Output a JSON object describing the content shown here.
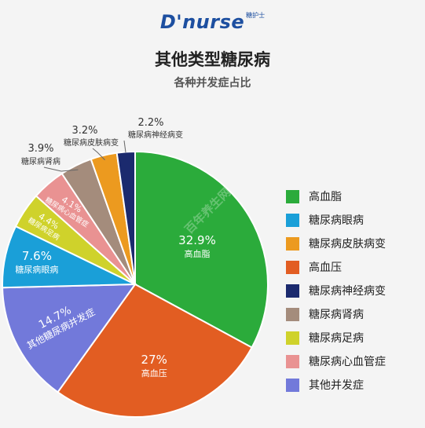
{
  "logo": {
    "text": "D'nurse",
    "subtext": "糖护士"
  },
  "chart_data": {
    "type": "pie",
    "title": "其他类型糖尿病",
    "subtitle": "各种并发症占比",
    "unit": "%",
    "legend_position": "right",
    "watermark": "百年养生网",
    "slices": [
      {
        "label": "高血脂",
        "value": 32.9,
        "value_label": "32.9%",
        "color": "#2bab3b"
      },
      {
        "label": "高血压",
        "value": 27.0,
        "value_label": "27%",
        "color": "#e25d22"
      },
      {
        "label": "其他糖尿病并发症",
        "value": 14.7,
        "value_label": "14.7%",
        "color": "#7279da"
      },
      {
        "label": "糖尿病眼病",
        "value": 7.6,
        "value_label": "7.6%",
        "color": "#1a9fd8"
      },
      {
        "label": "糖尿病足病",
        "value": 4.4,
        "value_label": "4.4%",
        "color": "#cfd22b"
      },
      {
        "label": "糖尿病心血管症",
        "value": 4.1,
        "value_label": "4.1%",
        "color": "#e99292"
      },
      {
        "label": "糖尿病肾病",
        "value": 3.9,
        "value_label": "3.9%",
        "color": "#a48c7c"
      },
      {
        "label": "糖尿病皮肤病变",
        "value": 3.2,
        "value_label": "3.2%",
        "color": "#ec9a1f"
      },
      {
        "label": "糖尿病神经病变",
        "value": 2.2,
        "value_label": "2.2%",
        "color": "#1b2a6e"
      }
    ],
    "legend": [
      {
        "label": "高血脂",
        "color": "#2bab3b"
      },
      {
        "label": "糖尿病眼病",
        "color": "#1a9fd8"
      },
      {
        "label": "糖尿病皮肤病变",
        "color": "#ec9a1f"
      },
      {
        "label": "高血压",
        "color": "#e25d22"
      },
      {
        "label": "糖尿病神经病变",
        "color": "#1b2a6e"
      },
      {
        "label": "糖尿病肾病",
        "color": "#a48c7c"
      },
      {
        "label": "糖尿病足病",
        "color": "#cfd22b"
      },
      {
        "label": "糖尿病心血管症",
        "color": "#e99292"
      },
      {
        "label": "其他并发症",
        "color": "#7279da"
      }
    ]
  }
}
